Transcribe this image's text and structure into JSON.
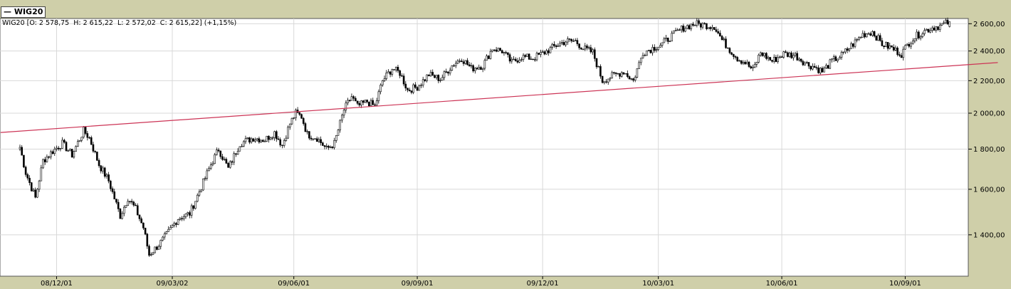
{
  "tab": {
    "label": "— WIG20"
  },
  "info": {
    "text": "WIG20 [O: 2 578,75  H: 2 615,22  L: 2 572,02  C: 2 615,22] (+1,15%)"
  },
  "colors": {
    "background": "#cfcfa9",
    "plot_bg": "#ffffff",
    "candle": "#000000",
    "trendline": "#cc3355",
    "grid": "#d8d8d8"
  },
  "chart_data": {
    "type": "candlestick",
    "instrument": "WIG20",
    "scale": "log",
    "ylim": [
      1240,
      2640
    ],
    "grid": true,
    "y_ticks": [
      {
        "value": 1400,
        "label": "1 400,00"
      },
      {
        "value": 1600,
        "label": "1 600,00"
      },
      {
        "value": 1800,
        "label": "1 800,00"
      },
      {
        "value": 2000,
        "label": "2 000,00"
      },
      {
        "value": 2200,
        "label": "2 200,00"
      },
      {
        "value": 2400,
        "label": "2 400,00"
      },
      {
        "value": 2600,
        "label": "2 600,00"
      }
    ],
    "x_ticks": [
      {
        "index": 19,
        "label": "08/12/01"
      },
      {
        "index": 79,
        "label": "09/03/02"
      },
      {
        "index": 142,
        "label": "09/06/01"
      },
      {
        "index": 206,
        "label": "09/09/01"
      },
      {
        "index": 271,
        "label": "09/12/01"
      },
      {
        "index": 331,
        "label": "10/03/01"
      },
      {
        "index": 395,
        "label": "10/06/01"
      },
      {
        "index": 459,
        "label": "10/09/01"
      }
    ],
    "last": {
      "open": 2578.75,
      "high": 2615.22,
      "low": 2572.02,
      "close": 2615.22,
      "change": "+1,15%"
    },
    "trendline": {
      "start": {
        "index": -10,
        "value": 1890
      },
      "end": {
        "index": 507,
        "value": 2320
      }
    },
    "close_path": [
      [
        0,
        1810
      ],
      [
        3,
        1680
      ],
      [
        8,
        1560
      ],
      [
        12,
        1740
      ],
      [
        17,
        1790
      ],
      [
        22,
        1830
      ],
      [
        27,
        1770
      ],
      [
        33,
        1900
      ],
      [
        36,
        1860
      ],
      [
        41,
        1720
      ],
      [
        46,
        1640
      ],
      [
        52,
        1480
      ],
      [
        56,
        1560
      ],
      [
        60,
        1510
      ],
      [
        64,
        1430
      ],
      [
        67,
        1320
      ],
      [
        72,
        1360
      ],
      [
        76,
        1400
      ],
      [
        82,
        1470
      ],
      [
        88,
        1490
      ],
      [
        93,
        1590
      ],
      [
        99,
        1720
      ],
      [
        103,
        1800
      ],
      [
        108,
        1700
      ],
      [
        114,
        1830
      ],
      [
        121,
        1860
      ],
      [
        127,
        1850
      ],
      [
        132,
        1890
      ],
      [
        136,
        1820
      ],
      [
        140,
        1940
      ],
      [
        143,
        2000
      ],
      [
        146,
        1980
      ],
      [
        149,
        1880
      ],
      [
        154,
        1860
      ],
      [
        159,
        1800
      ],
      [
        163,
        1830
      ],
      [
        168,
        2020
      ],
      [
        172,
        2100
      ],
      [
        175,
        2040
      ],
      [
        180,
        2070
      ],
      [
        184,
        2040
      ],
      [
        188,
        2200
      ],
      [
        193,
        2280
      ],
      [
        197,
        2250
      ],
      [
        201,
        2140
      ],
      [
        206,
        2160
      ],
      [
        212,
        2240
      ],
      [
        218,
        2210
      ],
      [
        224,
        2300
      ],
      [
        229,
        2350
      ],
      [
        234,
        2280
      ],
      [
        240,
        2300
      ],
      [
        245,
        2420
      ],
      [
        250,
        2400
      ],
      [
        255,
        2320
      ],
      [
        260,
        2360
      ],
      [
        266,
        2350
      ],
      [
        272,
        2390
      ],
      [
        278,
        2440
      ],
      [
        283,
        2470
      ],
      [
        288,
        2470
      ],
      [
        292,
        2420
      ],
      [
        297,
        2390
      ],
      [
        302,
        2200
      ],
      [
        307,
        2230
      ],
      [
        313,
        2260
      ],
      [
        318,
        2200
      ],
      [
        323,
        2390
      ],
      [
        328,
        2420
      ],
      [
        333,
        2450
      ],
      [
        338,
        2510
      ],
      [
        344,
        2570
      ],
      [
        350,
        2600
      ],
      [
        355,
        2590
      ],
      [
        360,
        2580
      ],
      [
        364,
        2480
      ],
      [
        368,
        2410
      ],
      [
        372,
        2350
      ],
      [
        376,
        2320
      ],
      [
        380,
        2270
      ],
      [
        384,
        2390
      ],
      [
        390,
        2330
      ],
      [
        396,
        2380
      ],
      [
        402,
        2370
      ],
      [
        408,
        2310
      ],
      [
        412,
        2290
      ],
      [
        416,
        2260
      ],
      [
        421,
        2330
      ],
      [
        426,
        2370
      ],
      [
        432,
        2450
      ],
      [
        437,
        2520
      ],
      [
        442,
        2540
      ],
      [
        447,
        2450
      ],
      [
        452,
        2420
      ],
      [
        457,
        2380
      ],
      [
        462,
        2480
      ],
      [
        468,
        2540
      ],
      [
        473,
        2570
      ],
      [
        478,
        2590
      ],
      [
        482,
        2615
      ]
    ],
    "count": 483
  }
}
